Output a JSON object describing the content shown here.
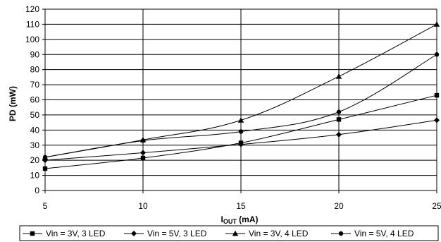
{
  "chart_data": {
    "type": "line",
    "title": "",
    "xlabel_main": "I",
    "xlabel_sub": "OUT",
    "xlabel_rest": " (mA)",
    "ylabel": "PD (mW)",
    "x": [
      5,
      10,
      15,
      20,
      25
    ],
    "xlim": [
      5,
      25
    ],
    "ylim": [
      0,
      120
    ],
    "x_ticks": [
      "5",
      "10",
      "15",
      "20",
      "25"
    ],
    "y_ticks": [
      "0",
      "10",
      "20",
      "30",
      "40",
      "50",
      "60",
      "70",
      "80",
      "90",
      "100",
      "110",
      "120"
    ],
    "grid": true,
    "legend_position": "bottom",
    "series": [
      {
        "name": "Vin = 3V, 3 LED",
        "marker": "square",
        "values": [
          14.5,
          21.5,
          31.5,
          47,
          63
        ]
      },
      {
        "name": "Vin = 5V, 3 LED",
        "marker": "diamond",
        "values": [
          20,
          25,
          30.5,
          37,
          46.5
        ]
      },
      {
        "name": "Vin = 3V, 4 LED",
        "marker": "triangle",
        "values": [
          22,
          33.5,
          46.5,
          75.5,
          110
        ]
      },
      {
        "name": "Vin = 5V, 4 LED",
        "marker": "circle",
        "values": [
          22,
          33,
          39,
          52,
          90
        ]
      }
    ],
    "colors": {
      "line": "#000000",
      "grid": "#000000",
      "background": "#ffffff"
    }
  }
}
